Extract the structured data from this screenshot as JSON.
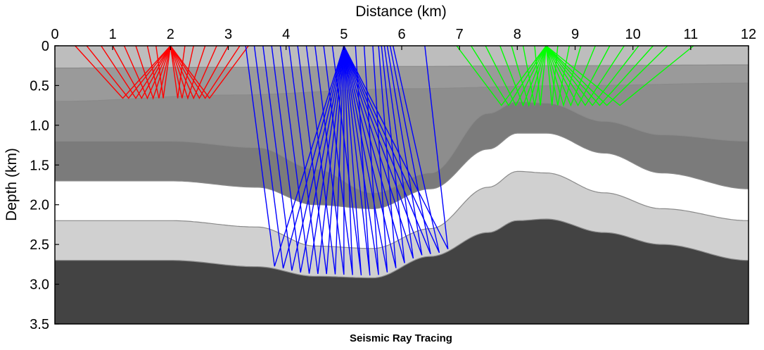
{
  "chart_data": {
    "type": "seismic-ray-diagram",
    "title": "Seismic Ray Tracing",
    "xlabel": "Distance (km)",
    "ylabel": "Depth (km)",
    "xlim": [
      0,
      12
    ],
    "ylim": [
      0,
      3.5
    ],
    "x_ticks": [
      "0",
      "1",
      "2",
      "3",
      "4",
      "5",
      "6",
      "7",
      "8",
      "9",
      "10",
      "11",
      "12"
    ],
    "y_ticks": [
      "0",
      "0.5",
      "1.0",
      "1.5",
      "2.0",
      "2.5",
      "3.0",
      "3.5"
    ],
    "layer_colors": [
      "#bdbdbd",
      "#9a9a9a",
      "#8d8d8d",
      "#7b7b7b",
      "#ffffff",
      "#d0d0d0",
      "#434343"
    ],
    "interfaces": [
      {
        "name": "interface-1",
        "x": [
          0,
          3,
          6,
          9,
          12
        ],
        "depth": [
          0.28,
          0.27,
          0.26,
          0.25,
          0.24
        ]
      },
      {
        "name": "interface-2",
        "x": [
          0,
          3,
          6,
          9,
          12
        ],
        "depth": [
          0.7,
          0.62,
          0.54,
          0.5,
          0.47
        ]
      },
      {
        "name": "interface-3",
        "x": [
          0,
          2,
          3.5,
          4.5,
          5.5,
          6.5,
          7.5,
          8,
          8.5,
          9.5,
          10.5,
          12
        ],
        "depth": [
          1.2,
          1.2,
          1.28,
          1.55,
          1.85,
          1.6,
          0.85,
          0.7,
          0.72,
          0.95,
          1.12,
          1.2
        ]
      },
      {
        "name": "interface-4",
        "x": [
          0,
          2,
          3.5,
          4.5,
          5.5,
          6.5,
          7.5,
          8,
          8.5,
          9.5,
          10.5,
          12
        ],
        "depth": [
          1.7,
          1.7,
          1.78,
          2.0,
          2.05,
          1.8,
          1.3,
          1.1,
          1.1,
          1.35,
          1.6,
          1.8
        ]
      },
      {
        "name": "interface-5",
        "x": [
          0,
          2,
          3.5,
          4.5,
          5.5,
          6.5,
          7.5,
          8,
          8.5,
          9.5,
          10.5,
          12
        ],
        "depth": [
          2.2,
          2.2,
          2.28,
          2.52,
          2.55,
          2.3,
          1.78,
          1.58,
          1.6,
          1.85,
          2.05,
          2.2
        ]
      },
      {
        "name": "interface-6",
        "x": [
          0,
          2,
          3.5,
          4.5,
          5.5,
          6.5,
          7.5,
          8,
          8.5,
          9.5,
          10.5,
          12
        ],
        "depth": [
          2.7,
          2.7,
          2.78,
          2.9,
          2.92,
          2.65,
          2.35,
          2.2,
          2.18,
          2.35,
          2.5,
          2.7
        ]
      }
    ],
    "ray_fans": [
      {
        "name": "red-fan",
        "color": "#ff0000",
        "source_x": 2.0,
        "source_depth": 0.0,
        "reflector_depth": 0.66,
        "receivers_x": [
          0.35,
          0.55,
          0.8,
          1.0,
          1.2,
          1.4,
          1.6,
          1.75,
          2.25,
          2.4,
          2.6,
          2.8,
          3.0,
          3.2,
          3.35
        ]
      },
      {
        "name": "blue-fan",
        "color": "#0000ff",
        "source_x": 5.0,
        "source_depth": 0.0,
        "reflector_x": [
          3.8,
          3.95,
          4.1,
          4.25,
          4.4,
          4.55,
          4.7,
          4.85,
          5.0,
          5.15,
          5.3,
          5.45,
          5.6,
          5.75,
          5.9,
          6.05,
          6.2,
          6.35,
          6.5,
          6.65,
          6.8
        ],
        "receivers_x": [
          3.3,
          3.45,
          3.6,
          3.75,
          3.9,
          4.05,
          4.2,
          4.35,
          4.5,
          4.65,
          4.8,
          5.2,
          5.35,
          5.5,
          5.6,
          5.65,
          5.7,
          5.75,
          5.8,
          5.85,
          6.4
        ]
      },
      {
        "name": "green-fan",
        "color": "#00ff00",
        "source_x": 8.5,
        "source_depth": 0.0,
        "reflector_depth": 0.75,
        "receivers_x": [
          6.95,
          7.2,
          7.45,
          7.7,
          7.9,
          8.1,
          8.3,
          8.7,
          8.9,
          9.1,
          9.35,
          9.6,
          9.85,
          10.1,
          10.35,
          10.6,
          11.05
        ]
      }
    ]
  }
}
